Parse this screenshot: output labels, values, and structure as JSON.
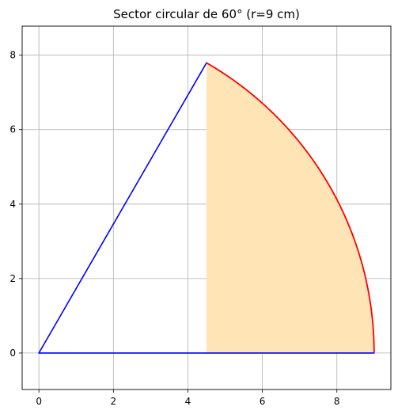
{
  "chart_data": {
    "type": "line",
    "title": "Sector circular de 60° (r=9 cm)",
    "xlabel": "",
    "ylabel": "",
    "xlim": [
      -0.45,
      9.45
    ],
    "ylim": [
      -0.98,
      8.78
    ],
    "xticks": [
      0,
      2,
      4,
      6,
      8
    ],
    "yticks": [
      0,
      2,
      4,
      6,
      8
    ],
    "grid": true,
    "radius": 9,
    "angle_degrees": 60,
    "series": [
      {
        "kind": "segments",
        "color": "#0000ff",
        "points": [
          [
            0,
            0
          ],
          [
            4.5,
            7.794
          ],
          [
            0,
            0
          ],
          [
            9,
            0
          ]
        ]
      },
      {
        "kind": "arc",
        "color": "#ff0000",
        "center": [
          0,
          0
        ],
        "radius": 9,
        "theta_start": 0,
        "theta_end": 60
      },
      {
        "kind": "fill",
        "color": "#ffe4b5",
        "x_start": 4.5,
        "x_end": 9,
        "center": [
          0,
          0
        ],
        "radius": 9
      }
    ]
  }
}
